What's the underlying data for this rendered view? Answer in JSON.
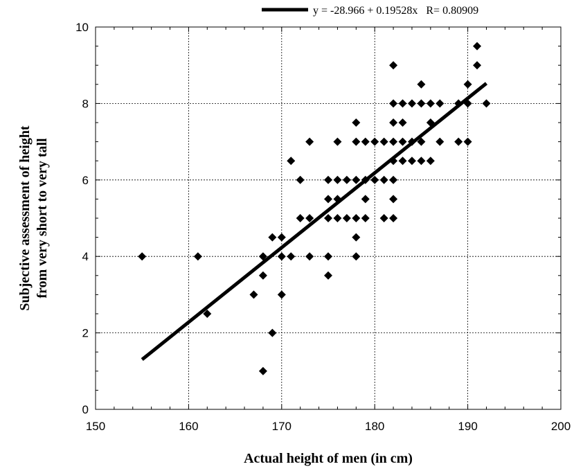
{
  "chart_data": {
    "type": "scatter",
    "xlabel": "Actual height of men (in cm)",
    "ylabel_lines": [
      "Subjective assessment of height",
      "from very short to very tall"
    ],
    "xlim": [
      150,
      200
    ],
    "ylim": [
      0,
      10
    ],
    "xticks": [
      "150",
      "160",
      "170",
      "180",
      "190",
      "200"
    ],
    "yticks": [
      "0",
      "2",
      "4",
      "6",
      "8",
      "10"
    ],
    "grid": true,
    "legend_position": "top-right",
    "fit": {
      "label": "y = -28.966 + 0.19528x   R= 0.80909",
      "intercept": -28.966,
      "slope": 0.19528,
      "x_range": [
        155,
        192
      ]
    },
    "points": [
      [
        155,
        4
      ],
      [
        161,
        4
      ],
      [
        162,
        2.5
      ],
      [
        167,
        3
      ],
      [
        168,
        1
      ],
      [
        168,
        3.5
      ],
      [
        168,
        4
      ],
      [
        169,
        2
      ],
      [
        169,
        4.5
      ],
      [
        170,
        3
      ],
      [
        170,
        4
      ],
      [
        170,
        4.5
      ],
      [
        171,
        4
      ],
      [
        171,
        6.5
      ],
      [
        172,
        5
      ],
      [
        172,
        6
      ],
      [
        173,
        4
      ],
      [
        173,
        5
      ],
      [
        173,
        7
      ],
      [
        175,
        3.5
      ],
      [
        175,
        4
      ],
      [
        175,
        5
      ],
      [
        175,
        5.5
      ],
      [
        175,
        6
      ],
      [
        176,
        5
      ],
      [
        176,
        5.5
      ],
      [
        176,
        6
      ],
      [
        176,
        7
      ],
      [
        177,
        5
      ],
      [
        177,
        6
      ],
      [
        178,
        4
      ],
      [
        178,
        4.5
      ],
      [
        178,
        5
      ],
      [
        178,
        6
      ],
      [
        178,
        7
      ],
      [
        178,
        7.5
      ],
      [
        179,
        5
      ],
      [
        179,
        5.5
      ],
      [
        179,
        6
      ],
      [
        179,
        7
      ],
      [
        180,
        6
      ],
      [
        180,
        7
      ],
      [
        181,
        5
      ],
      [
        181,
        6
      ],
      [
        181,
        7
      ],
      [
        182,
        5
      ],
      [
        182,
        5.5
      ],
      [
        182,
        6
      ],
      [
        182,
        6.5
      ],
      [
        182,
        7
      ],
      [
        182,
        7.5
      ],
      [
        182,
        8
      ],
      [
        182,
        9
      ],
      [
        183,
        6.5
      ],
      [
        183,
        7
      ],
      [
        183,
        7.5
      ],
      [
        183,
        8
      ],
      [
        184,
        6.5
      ],
      [
        184,
        7
      ],
      [
        184,
        8
      ],
      [
        185,
        6.5
      ],
      [
        185,
        7
      ],
      [
        185,
        8
      ],
      [
        185,
        8.5
      ],
      [
        186,
        6.5
      ],
      [
        186,
        7.5
      ],
      [
        186,
        8
      ],
      [
        187,
        7
      ],
      [
        187,
        8
      ],
      [
        189,
        7
      ],
      [
        189,
        8
      ],
      [
        190,
        7
      ],
      [
        190,
        8
      ],
      [
        190,
        8.5
      ],
      [
        191,
        9
      ],
      [
        191,
        9.5
      ],
      [
        192,
        8
      ]
    ]
  }
}
